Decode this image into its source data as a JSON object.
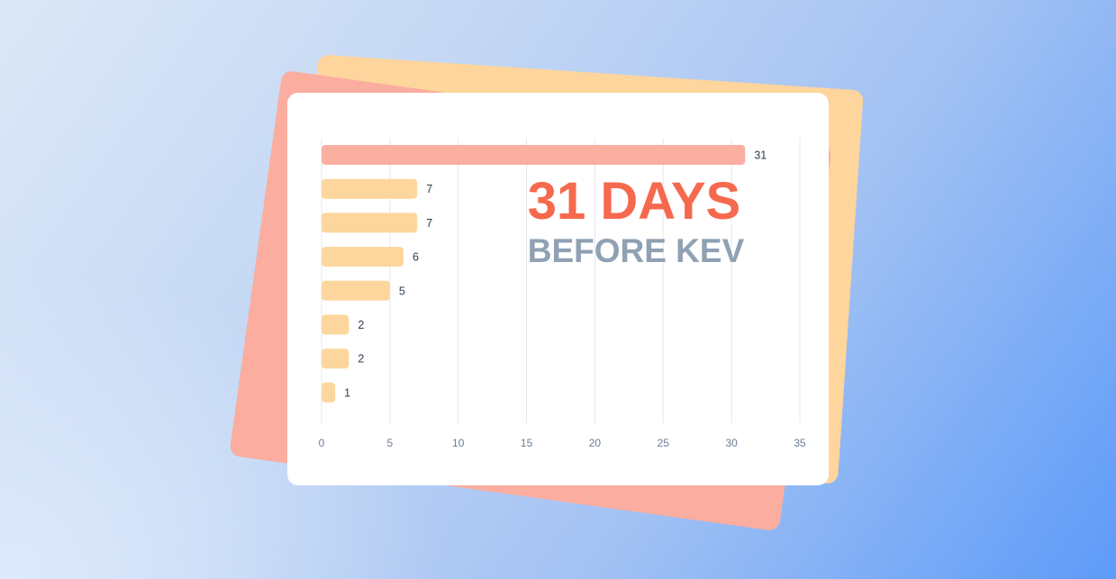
{
  "chart_data": {
    "type": "bar",
    "orientation": "horizontal",
    "values": [
      31,
      7,
      7,
      6,
      5,
      2,
      2,
      1
    ],
    "xlim": [
      0,
      35
    ],
    "xticks": [
      0,
      5,
      10,
      15,
      20,
      25,
      30,
      35
    ],
    "grid": true,
    "highlight_index": 0,
    "colors": {
      "highlight": "#fbab9c",
      "default": "#fdd69d"
    },
    "annotation": {
      "headline": "31 DAYS",
      "subline": "BEFORE KEV"
    },
    "title": "",
    "xlabel": "",
    "ylabel": ""
  },
  "colors": {
    "headline": "#f5694e",
    "subline": "#8fa1b3",
    "card_orange": "#fdd59d",
    "card_salmon": "#fbad9f"
  }
}
